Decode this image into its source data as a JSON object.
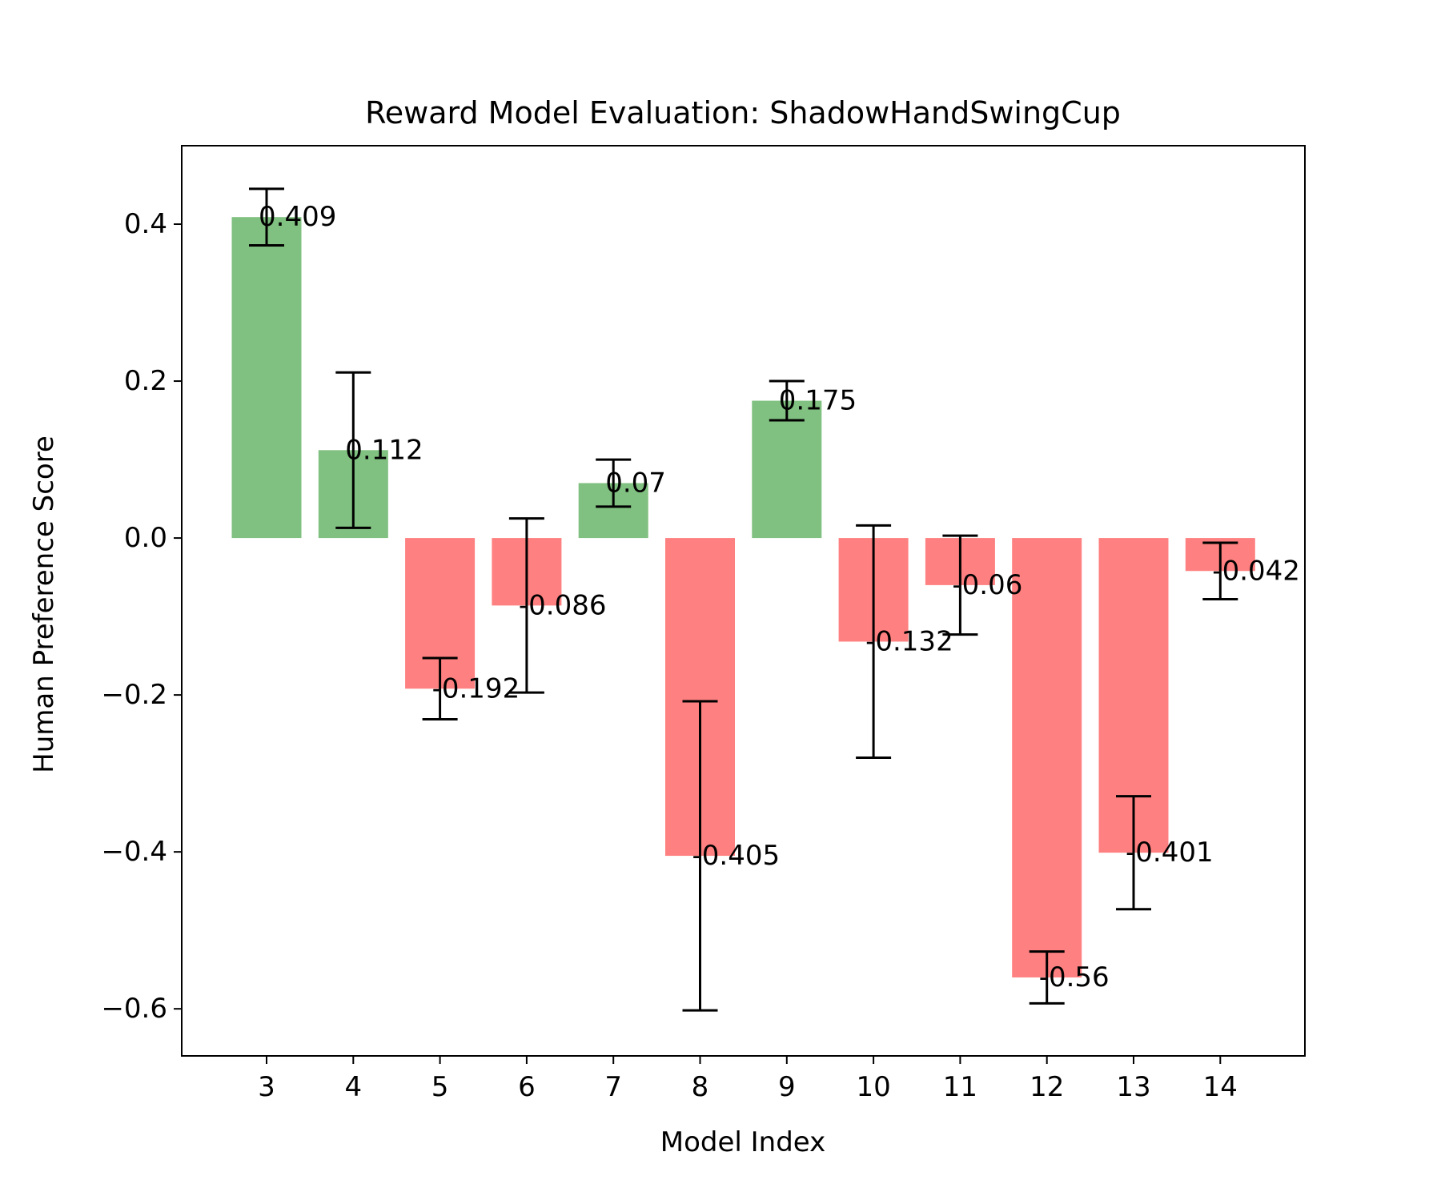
{
  "chart_data": {
    "type": "bar",
    "title": "Reward Model Evaluation: ShadowHandSwingCup",
    "xlabel": "Model Index",
    "ylabel": "Human Preference Score",
    "categories": [
      "3",
      "4",
      "5",
      "6",
      "7",
      "8",
      "9",
      "10",
      "11",
      "12",
      "13",
      "14"
    ],
    "values": [
      0.409,
      0.112,
      -0.192,
      -0.086,
      0.07,
      -0.405,
      0.175,
      -0.132,
      -0.06,
      -0.56,
      -0.401,
      -0.042
    ],
    "value_labels": [
      "0.409",
      "0.112",
      "-0.192",
      "-0.086",
      "0.07",
      "-0.405",
      "0.175",
      "-0.132",
      "-0.06",
      "-0.56",
      "-0.401",
      "-0.042"
    ],
    "error": [
      0.036,
      0.099,
      0.039,
      0.111,
      0.03,
      0.197,
      0.025,
      0.148,
      0.063,
      0.033,
      0.072,
      0.036
    ],
    "ylim": [
      -0.66,
      0.5
    ],
    "yticks": [
      0.4,
      0.2,
      0.0,
      -0.2,
      -0.4,
      -0.6
    ],
    "ytick_labels": [
      "0.4",
      "0.2",
      "0.0",
      "−0.2",
      "−0.4",
      "−0.6"
    ],
    "grid": false,
    "colors": {
      "positive": "#80c080",
      "negative": "#ff8080",
      "errorbar": "#000000",
      "axes": "#000000"
    }
  }
}
